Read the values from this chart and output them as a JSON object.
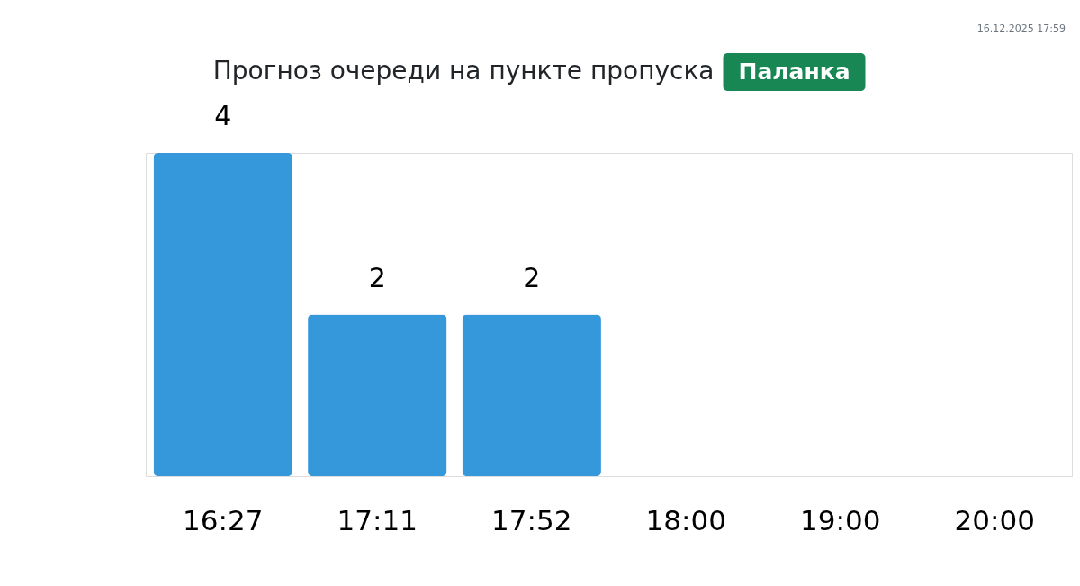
{
  "chart_data": {
    "type": "bar",
    "title": "Прогноз очереди на пункте пропуска",
    "subtitle": "Паланка",
    "annotations": [
      "16.12.2025 17:59"
    ],
    "categories": [
      "16:27",
      "17:11",
      "17:52",
      "18:00",
      "19:00",
      "20:00"
    ],
    "series": [
      {
        "color": "#3598db",
        "values": [
          4,
          2,
          2,
          null,
          null,
          null
        ]
      }
    ],
    "data_labels": true,
    "tick_labels": "x"
  }
}
